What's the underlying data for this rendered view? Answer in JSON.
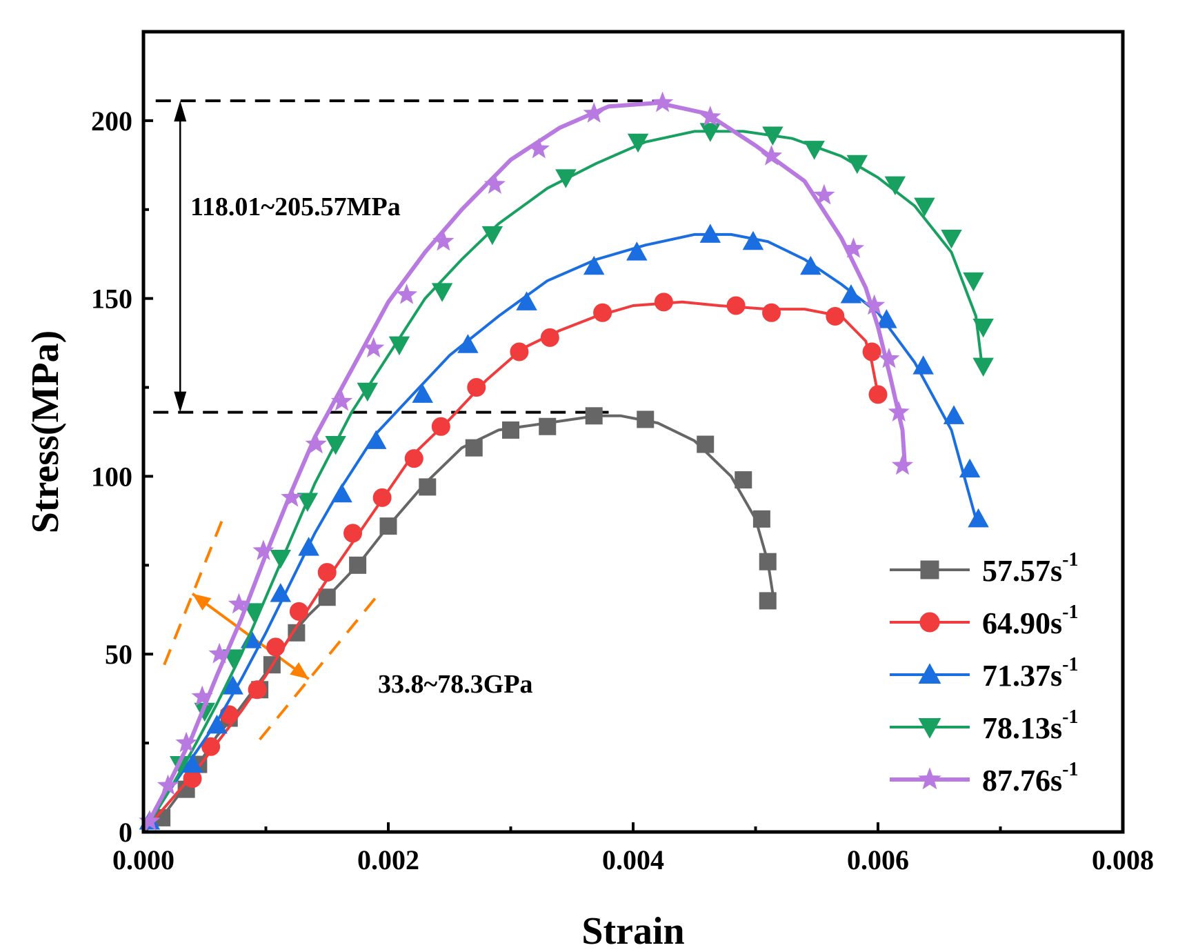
{
  "chart_data": {
    "type": "line",
    "xlabel": "Strain",
    "ylabel": "Stress(MPa)",
    "xlim": [
      0,
      0.008
    ],
    "ylim": [
      0,
      225
    ],
    "x_ticks": [
      0,
      0.002,
      0.004,
      0.006,
      0.008
    ],
    "x_tick_labels": [
      "0.000",
      "0.002",
      "0.004",
      "0.006",
      "0.008"
    ],
    "y_ticks": [
      0,
      50,
      100,
      150,
      200
    ],
    "y_tick_labels": [
      "0",
      "50",
      "100",
      "150",
      "200"
    ],
    "grid": false,
    "legend_position": "bottom-right",
    "series": [
      {
        "name": "57.57s",
        "sup": "-1",
        "color": "#666666",
        "marker": "square",
        "x": [
          0,
          0.00015,
          0.0003,
          0.00045,
          0.0006,
          0.00075,
          0.0009,
          0.00105,
          0.0012,
          0.00135,
          0.0015,
          0.00175,
          0.002,
          0.0023,
          0.0026,
          0.0029,
          0.0033,
          0.0037,
          0.0039,
          0.0042,
          0.0045,
          0.0048,
          0.005,
          0.0051,
          0.00515
        ],
        "y": [
          0,
          4,
          11,
          19,
          27,
          33,
          40,
          47,
          55,
          61,
          66,
          75,
          86,
          98,
          108,
          113,
          115,
          117,
          117,
          115,
          110,
          100,
          88,
          76,
          65
        ],
        "markers": [
          [
            0.00015,
            4
          ],
          [
            0.00035,
            12
          ],
          [
            0.00045,
            19
          ],
          [
            0.0007,
            32
          ],
          [
            0.00095,
            40
          ],
          [
            0.00105,
            47
          ],
          [
            0.00125,
            56
          ],
          [
            0.0015,
            66
          ],
          [
            0.00175,
            75
          ],
          [
            0.002,
            86
          ],
          [
            0.00232,
            97
          ],
          [
            0.0027,
            108
          ],
          [
            0.003,
            113
          ],
          [
            0.0033,
            114
          ],
          [
            0.00368,
            117
          ],
          [
            0.0041,
            116
          ],
          [
            0.00459,
            109
          ],
          [
            0.0049,
            99
          ],
          [
            0.00505,
            88
          ],
          [
            0.0051,
            76
          ],
          [
            0.0051,
            65
          ]
        ]
      },
      {
        "name": "64.90s",
        "sup": "-1",
        "color": "#f03c3c",
        "marker": "circle",
        "x": [
          0,
          0.0002,
          0.0004,
          0.0006,
          0.0008,
          0.001,
          0.0012,
          0.0015,
          0.0018,
          0.002,
          0.0022,
          0.0025,
          0.0028,
          0.0031,
          0.0034,
          0.0037,
          0.004,
          0.0044,
          0.0047,
          0.0051,
          0.0054,
          0.0057,
          0.0059,
          0.00595,
          0.006
        ],
        "y": [
          0,
          8,
          16,
          25,
          34,
          44,
          55,
          71,
          86,
          96,
          106,
          116,
          127,
          136,
          141,
          145,
          148,
          149,
          148,
          147,
          147,
          145,
          138,
          132,
          123
        ],
        "markers": [
          [
            0.0004,
            15
          ],
          [
            0.00055,
            24
          ],
          [
            0.0007,
            33
          ],
          [
            0.00093,
            40
          ],
          [
            0.00108,
            52
          ],
          [
            0.00127,
            62
          ],
          [
            0.0015,
            73
          ],
          [
            0.00171,
            84
          ],
          [
            0.00195,
            94
          ],
          [
            0.00221,
            105
          ],
          [
            0.00243,
            114
          ],
          [
            0.00272,
            125
          ],
          [
            0.00307,
            135
          ],
          [
            0.00332,
            139
          ],
          [
            0.00375,
            146
          ],
          [
            0.00425,
            149
          ],
          [
            0.00484,
            148
          ],
          [
            0.00513,
            146
          ],
          [
            0.00565,
            145
          ],
          [
            0.00595,
            135
          ],
          [
            0.006,
            123
          ]
        ]
      },
      {
        "name": "71.37s",
        "sup": "-1",
        "color": "#1a6ee0",
        "marker": "triangle-up",
        "x": [
          0,
          0.0002,
          0.0004,
          0.0006,
          0.0008,
          0.001,
          0.0012,
          0.0014,
          0.0016,
          0.0019,
          0.0022,
          0.0025,
          0.0029,
          0.0033,
          0.0037,
          0.0041,
          0.0045,
          0.0048,
          0.0051,
          0.0054,
          0.0057,
          0.006,
          0.0063,
          0.0066,
          0.0068
        ],
        "y": [
          0,
          11,
          21,
          31,
          43,
          56,
          70,
          84,
          96,
          112,
          123,
          134,
          145,
          155,
          161,
          165,
          168,
          168,
          166,
          161,
          154,
          146,
          132,
          113,
          88
        ],
        "markers": [
          [
            5e-05,
            3
          ],
          [
            0.0004,
            19
          ],
          [
            0.0006,
            30
          ],
          [
            0.00073,
            41
          ],
          [
            0.00088,
            54
          ],
          [
            0.00112,
            67
          ],
          [
            0.00135,
            80
          ],
          [
            0.00162,
            95
          ],
          [
            0.0019,
            110
          ],
          [
            0.00228,
            123
          ],
          [
            0.00265,
            137
          ],
          [
            0.00313,
            149
          ],
          [
            0.00368,
            159
          ],
          [
            0.00403,
            163
          ],
          [
            0.00463,
            168
          ],
          [
            0.00498,
            166
          ],
          [
            0.00545,
            159
          ],
          [
            0.00578,
            151
          ],
          [
            0.00607,
            144
          ],
          [
            0.00637,
            131
          ],
          [
            0.00662,
            117
          ],
          [
            0.00675,
            102
          ],
          [
            0.00682,
            88
          ]
        ]
      },
      {
        "name": "78.13s",
        "sup": "-1",
        "color": "#18a061",
        "marker": "triangle-down",
        "x": [
          0,
          0.0002,
          0.0004,
          0.0006,
          0.0008,
          0.001,
          0.0012,
          0.0014,
          0.0017,
          0.002,
          0.0023,
          0.0026,
          0.0029,
          0.0033,
          0.0037,
          0.0041,
          0.0045,
          0.0049,
          0.0053,
          0.0057,
          0.006,
          0.0063,
          0.0066,
          0.0068,
          0.00685
        ],
        "y": [
          0,
          11,
          23,
          36,
          50,
          66,
          82,
          98,
          118,
          134,
          150,
          161,
          171,
          181,
          188,
          194,
          197,
          197,
          195,
          190,
          184,
          176,
          163,
          145,
          131
        ],
        "markers": [
          [
            0.0003,
            19
          ],
          [
            0.0005,
            34
          ],
          [
            0.00073,
            49
          ],
          [
            0.0009,
            62
          ],
          [
            0.00112,
            77
          ],
          [
            0.00134,
            93
          ],
          [
            0.00157,
            109
          ],
          [
            0.00183,
            124
          ],
          [
            0.00209,
            137
          ],
          [
            0.00244,
            152
          ],
          [
            0.00285,
            168
          ],
          [
            0.00345,
            184
          ],
          [
            0.00404,
            194
          ],
          [
            0.00463,
            197
          ],
          [
            0.00514,
            196
          ],
          [
            0.00548,
            192
          ],
          [
            0.00583,
            188
          ],
          [
            0.00614,
            182
          ],
          [
            0.00638,
            176
          ],
          [
            0.0066,
            167
          ],
          [
            0.00678,
            155
          ],
          [
            0.00686,
            142
          ],
          [
            0.00686,
            131
          ]
        ]
      },
      {
        "name": "87.76s",
        "sup": "-1",
        "color": "#b87ae0",
        "marker": "star",
        "x": [
          0,
          0.0002,
          0.0004,
          0.0006,
          0.0008,
          0.001,
          0.0012,
          0.0014,
          0.0017,
          0.002,
          0.0023,
          0.0026,
          0.003,
          0.0034,
          0.0038,
          0.0042,
          0.0046,
          0.005,
          0.0054,
          0.0057,
          0.0059,
          0.006,
          0.0061,
          0.0062,
          0.00622
        ],
        "y": [
          0,
          13,
          27,
          44,
          60,
          78,
          95,
          111,
          130,
          149,
          163,
          175,
          189,
          198,
          204,
          205,
          202,
          193,
          183,
          167,
          153,
          142,
          128,
          113,
          103
        ],
        "markers": [
          [
            5e-05,
            3
          ],
          [
            0.0002,
            13
          ],
          [
            0.00035,
            25
          ],
          [
            0.00048,
            38
          ],
          [
            0.00062,
            50
          ],
          [
            0.00078,
            64
          ],
          [
            0.00098,
            79
          ],
          [
            0.00121,
            94
          ],
          [
            0.00141,
            109
          ],
          [
            0.00162,
            121
          ],
          [
            0.00188,
            136
          ],
          [
            0.00215,
            151
          ],
          [
            0.00245,
            166
          ],
          [
            0.00287,
            182
          ],
          [
            0.00323,
            192
          ],
          [
            0.00368,
            202
          ],
          [
            0.00424,
            205
          ],
          [
            0.00463,
            201
          ],
          [
            0.00513,
            190
          ],
          [
            0.00556,
            179
          ],
          [
            0.0058,
            164
          ],
          [
            0.00597,
            148
          ],
          [
            0.00609,
            133
          ],
          [
            0.00617,
            118
          ],
          [
            0.0062,
            103
          ]
        ]
      }
    ],
    "annotations": {
      "stress_range_label": "118.01~205.57MPa",
      "stress_range_lower": 118.01,
      "stress_range_upper": 205.57,
      "modulus_label": "33.8~78.3GPa"
    }
  }
}
